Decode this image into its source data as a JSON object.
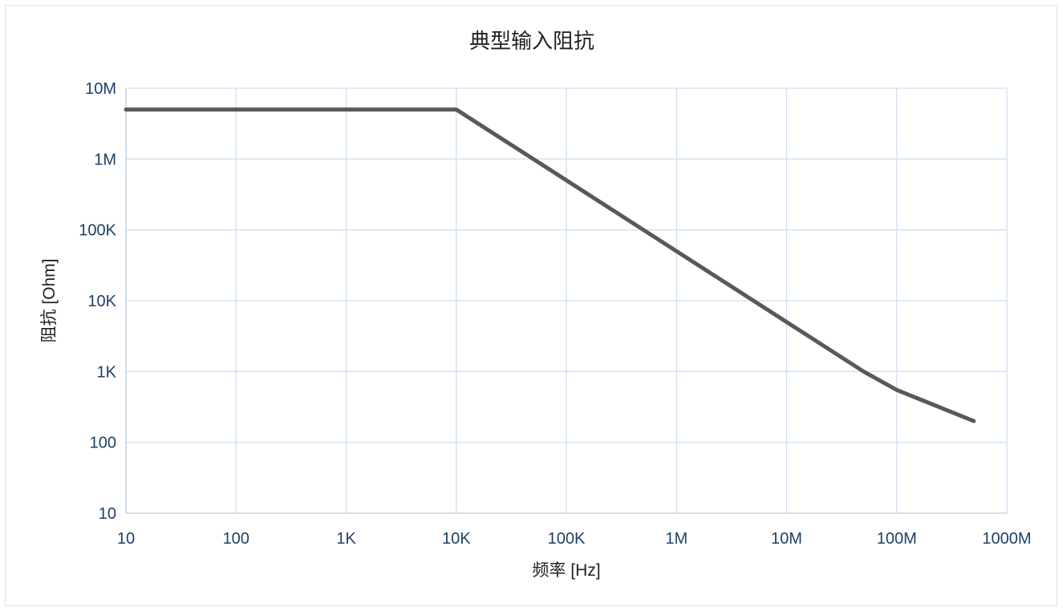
{
  "chart_data": {
    "type": "line",
    "title": "典型输入阻抗",
    "xlabel": "频率 [Hz]",
    "ylabel": "阻抗 [Ohm]",
    "x_scale": "log",
    "y_scale": "log",
    "xlim": [
      10,
      1000000000
    ],
    "ylim": [
      10,
      10000000
    ],
    "x_ticks": [
      {
        "value": 10,
        "label": "10"
      },
      {
        "value": 100,
        "label": "100"
      },
      {
        "value": 1000,
        "label": "1K"
      },
      {
        "value": 10000,
        "label": "10K"
      },
      {
        "value": 100000,
        "label": "100K"
      },
      {
        "value": 1000000,
        "label": "1M"
      },
      {
        "value": 10000000,
        "label": "10M"
      },
      {
        "value": 100000000,
        "label": "100M"
      },
      {
        "value": 1000000000,
        "label": "1000M"
      }
    ],
    "y_ticks": [
      {
        "value": 10,
        "label": "10"
      },
      {
        "value": 100,
        "label": "100"
      },
      {
        "value": 1000,
        "label": "1K"
      },
      {
        "value": 10000,
        "label": "10K"
      },
      {
        "value": 100000,
        "label": "100K"
      },
      {
        "value": 1000000,
        "label": "1M"
      },
      {
        "value": 10000000,
        "label": "10M"
      }
    ],
    "grid": true,
    "legend": "none",
    "series": [
      {
        "color": "#595959",
        "x": [
          10,
          10000,
          100000,
          1000000,
          10000000,
          50000000,
          100000000,
          500000000
        ],
        "y": [
          5000000,
          5000000,
          500000,
          50000,
          5000,
          1000,
          550,
          200
        ]
      }
    ]
  }
}
